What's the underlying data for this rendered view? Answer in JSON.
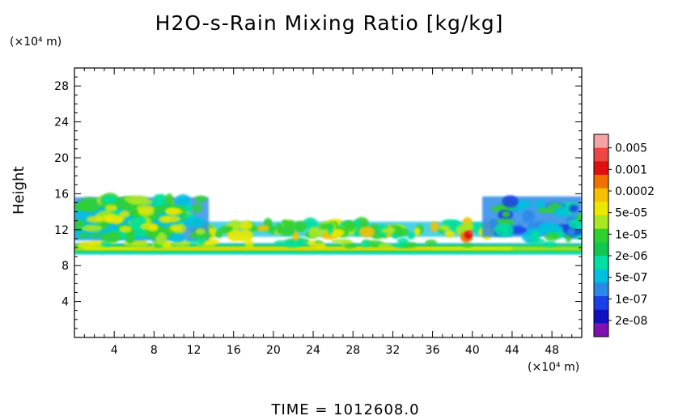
{
  "chart_data": {
    "type": "heatmap",
    "title": "H2O-s-Rain Mixing Ratio [kg/kg]",
    "ylabel": "Height",
    "y_unit_label": "(×10⁴ m)",
    "x_unit_label": "(×10⁴ m)",
    "xlim": [
      0,
      51
    ],
    "ylim": [
      0,
      30
    ],
    "x_ticks": [
      "4",
      "8",
      "12",
      "16",
      "20",
      "24",
      "28",
      "32",
      "36",
      "40",
      "44",
      "48"
    ],
    "y_ticks": [
      "4",
      "8",
      "12",
      "16",
      "20",
      "24",
      "28"
    ],
    "colorbar": {
      "labels": [
        "0.005",
        "0.001",
        "0.0002",
        "5e-05",
        "1e-05",
        "2e-06",
        "5e-07",
        "1e-07",
        "2e-08"
      ],
      "colors": [
        "#f5a3a3",
        "#ee4545",
        "#e01010",
        "#f07000",
        "#f5c000",
        "#e8e800",
        "#a8e820",
        "#30d030",
        "#10c850",
        "#00e0a0",
        "#00c0e0",
        "#2a8ae8",
        "#1a40e8",
        "#1010c0",
        "#8010b0"
      ]
    },
    "regions": [
      {
        "name": "lower-band",
        "x": [
          0,
          51
        ],
        "y": [
          9.2,
          10.6
        ],
        "level": "5e-05"
      },
      {
        "name": "middle-band",
        "x": [
          12,
          44
        ],
        "y": [
          10.8,
          13.2
        ],
        "level": "5e-05"
      },
      {
        "name": "left-upper-cloud",
        "x": [
          0,
          14.5
        ],
        "y": [
          10.5,
          16.2
        ],
        "level": "1e-05"
      },
      {
        "name": "right-upper-cloud",
        "x": [
          41,
          51
        ],
        "y": [
          10.5,
          16.2
        ],
        "level": "2e-06"
      },
      {
        "name": "peak",
        "x": [
          39.3,
          40.5
        ],
        "y": [
          11.0,
          12.6
        ],
        "level": "0.001"
      }
    ]
  },
  "footer": {
    "time_label": "TIME = 1012608.0"
  }
}
